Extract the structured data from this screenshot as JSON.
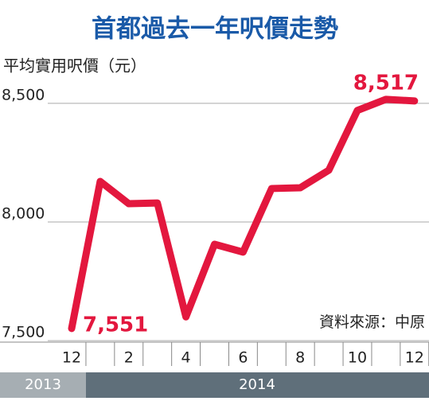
{
  "chart_data": {
    "type": "line",
    "title": "首都過去一年呎價走勢",
    "y_axis_label": "平均實用呎價（元）",
    "source": "資料來源：中原",
    "categories": [
      "12",
      null,
      "2",
      null,
      "4",
      null,
      "6",
      null,
      "8",
      null,
      "10",
      null,
      "12"
    ],
    "year_labels": [
      "2013",
      "2014"
    ],
    "series": [
      {
        "color": "#e3173e",
        "values": [
          7551,
          8171,
          8077,
          8080,
          7600,
          7906,
          7873,
          8141,
          8144,
          8218,
          8470,
          8517,
          8510
        ],
        "value_labels": [
          "7,551",
          null,
          null,
          null,
          null,
          null,
          null,
          null,
          null,
          null,
          null,
          "8,517",
          null
        ]
      }
    ],
    "ylim": [
      7460,
      8560
    ],
    "yticks": [
      {
        "value": 7500,
        "label": "7,500"
      },
      {
        "value": 8000,
        "label": "8,000"
      },
      {
        "value": 8500,
        "label": "8,500"
      }
    ],
    "grid": true
  }
}
